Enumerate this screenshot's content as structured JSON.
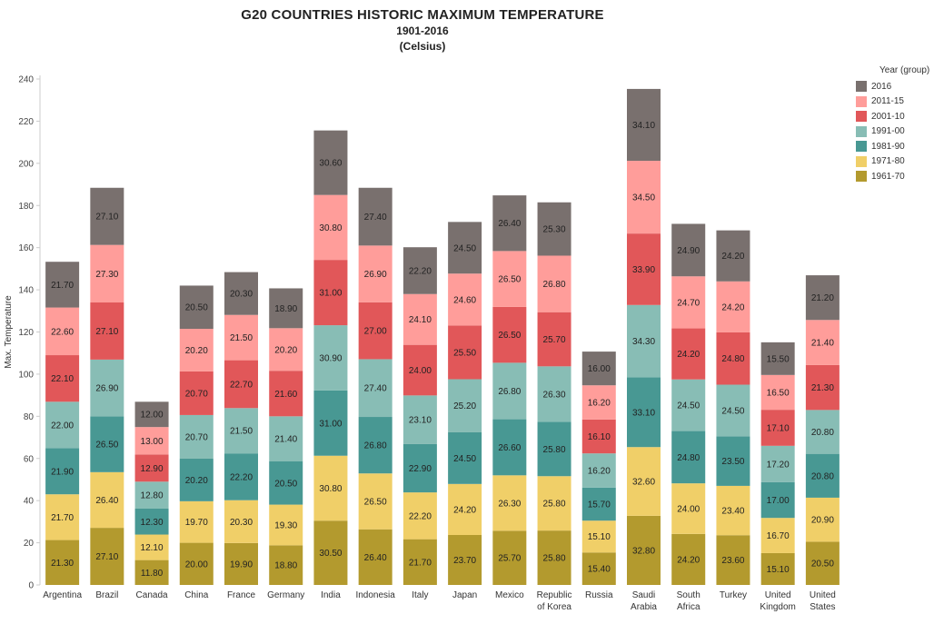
{
  "chart_data": {
    "type": "bar",
    "stacked": true,
    "title": "G20 COUNTRIES HISTORIC MAXIMUM TEMPERATURE",
    "subtitle": "1901-2016",
    "subtitle2": "(Celsius)",
    "ylabel": "Max. Temperature",
    "ylim": [
      0,
      240
    ],
    "yticks": [
      0,
      20,
      40,
      60,
      80,
      100,
      120,
      140,
      160,
      180,
      200,
      220,
      240
    ],
    "legend_title": "Year (group)",
    "legend_position": "top-right",
    "grid": false,
    "categories": [
      [
        "Argentina"
      ],
      [
        "Brazil"
      ],
      [
        "Canada"
      ],
      [
        "China"
      ],
      [
        "France"
      ],
      [
        "Germany"
      ],
      [
        "India"
      ],
      [
        "Indonesia"
      ],
      [
        "Italy"
      ],
      [
        "Japan"
      ],
      [
        "Mexico"
      ],
      [
        "Republic",
        "of Korea"
      ],
      [
        "Russia"
      ],
      [
        "Saudi",
        "Arabia"
      ],
      [
        "South",
        "Africa"
      ],
      [
        "Turkey"
      ],
      [
        "United",
        "Kingdom"
      ],
      [
        "United",
        "States"
      ]
    ],
    "series": [
      {
        "name": "1961-70",
        "color": "#b39a2e",
        "values": [
          21.3,
          27.1,
          11.8,
          20.0,
          19.9,
          18.8,
          30.5,
          26.4,
          21.7,
          23.7,
          25.7,
          25.8,
          15.4,
          32.8,
          24.2,
          23.6,
          15.1,
          20.5
        ]
      },
      {
        "name": "1971-80",
        "color": "#f0cf68",
        "values": [
          21.7,
          26.4,
          12.1,
          19.7,
          20.3,
          19.3,
          30.8,
          26.5,
          22.2,
          24.2,
          26.3,
          25.8,
          15.1,
          32.6,
          24.0,
          23.4,
          16.7,
          20.9
        ]
      },
      {
        "name": "1981-90",
        "color": "#489893",
        "values": [
          21.9,
          26.5,
          12.3,
          20.2,
          22.2,
          20.5,
          31.0,
          26.8,
          22.9,
          24.5,
          26.6,
          25.8,
          15.7,
          33.1,
          24.8,
          23.5,
          17.0,
          20.8
        ]
      },
      {
        "name": "1991-00",
        "color": "#88bdb5",
        "values": [
          22.0,
          26.9,
          12.8,
          20.7,
          21.5,
          21.4,
          30.9,
          27.4,
          23.1,
          25.2,
          26.8,
          26.3,
          16.2,
          34.3,
          24.5,
          24.5,
          17.2,
          20.8
        ]
      },
      {
        "name": "2001-10",
        "color": "#e15759",
        "values": [
          22.1,
          27.1,
          12.9,
          20.7,
          22.7,
          21.6,
          31.0,
          27.0,
          24.0,
          25.5,
          26.5,
          25.7,
          16.1,
          33.9,
          24.2,
          24.8,
          17.1,
          21.3
        ]
      },
      {
        "name": "2011-15",
        "color": "#ff9d9a",
        "values": [
          22.6,
          27.3,
          13.0,
          20.2,
          21.5,
          20.2,
          30.8,
          26.9,
          24.1,
          24.6,
          26.5,
          26.8,
          16.2,
          34.5,
          24.7,
          24.2,
          16.5,
          21.4
        ]
      },
      {
        "name": "2016",
        "color": "#79706e",
        "values": [
          21.7,
          27.1,
          12.0,
          20.5,
          20.3,
          18.9,
          30.6,
          27.4,
          22.2,
          24.5,
          26.4,
          25.3,
          16.0,
          34.1,
          24.9,
          24.2,
          15.5,
          21.2
        ]
      }
    ]
  }
}
